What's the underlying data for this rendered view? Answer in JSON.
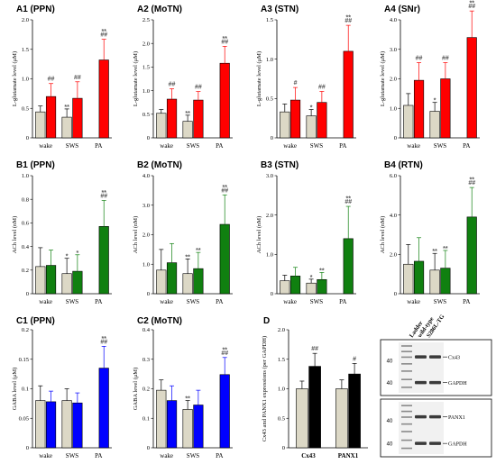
{
  "colors": {
    "control": "#dcd8c6",
    "red": "#ff0000",
    "green": "#108010",
    "blue": "#0000ff",
    "black": "#000000",
    "sig": "#555555"
  },
  "chart_data": [
    {
      "id": "A1",
      "type": "bar",
      "title": "A1 (PPN)",
      "ylabel": "L-glutamate level (μM)",
      "ylim": [
        0,
        2.0
      ],
      "yticks": [
        0,
        0.5,
        1.0,
        1.5,
        2.0
      ],
      "categories": [
        "wake",
        "SWS",
        "PA"
      ],
      "treatment_color": "red",
      "series": [
        {
          "values": [
            0.44,
            0.35,
            null
          ],
          "errors": [
            0.1,
            0.14,
            null
          ]
        },
        {
          "values": [
            0.7,
            0.67,
            1.32
          ],
          "errors": [
            0.22,
            0.28,
            0.35
          ]
        }
      ],
      "annotations": [
        {
          "cat": 0,
          "series": 1,
          "labels": [
            "##"
          ]
        },
        {
          "cat": 1,
          "series": 0,
          "labels": [
            "**"
          ]
        },
        {
          "cat": 1,
          "series": 1,
          "labels": [
            "##"
          ]
        },
        {
          "cat": 2,
          "series": 1,
          "labels": [
            "**",
            "##"
          ]
        }
      ]
    },
    {
      "id": "A2",
      "type": "bar",
      "title": "A2 (MoTN)",
      "ylabel": "L-glutamate level (μM)",
      "ylim": [
        0,
        2.5
      ],
      "yticks": [
        0,
        0.5,
        1.0,
        1.5,
        2.0,
        2.5
      ],
      "categories": [
        "wake",
        "SWS",
        "PA"
      ],
      "treatment_color": "red",
      "series": [
        {
          "values": [
            0.52,
            0.35,
            null
          ],
          "errors": [
            0.08,
            0.13,
            null
          ]
        },
        {
          "values": [
            0.82,
            0.8,
            1.58
          ],
          "errors": [
            0.22,
            0.18,
            0.36
          ]
        }
      ],
      "annotations": [
        {
          "cat": 0,
          "series": 1,
          "labels": [
            "##"
          ]
        },
        {
          "cat": 1,
          "series": 0,
          "labels": [
            "**"
          ]
        },
        {
          "cat": 1,
          "series": 1,
          "labels": [
            "##"
          ]
        },
        {
          "cat": 2,
          "series": 1,
          "labels": [
            "**",
            "##"
          ]
        }
      ]
    },
    {
      "id": "A3",
      "type": "bar",
      "title": "A3 (STN)",
      "ylabel": "L-glutamate level (μM)",
      "ylim": [
        0,
        1.5
      ],
      "yticks": [
        0,
        0.5,
        1.0,
        1.5
      ],
      "categories": [
        "wake",
        "SWS",
        "PA"
      ],
      "treatment_color": "red",
      "series": [
        {
          "values": [
            0.33,
            0.28,
            null
          ],
          "errors": [
            0.1,
            0.08,
            null
          ]
        },
        {
          "values": [
            0.48,
            0.45,
            1.1
          ],
          "errors": [
            0.16,
            0.14,
            0.33
          ]
        }
      ],
      "annotations": [
        {
          "cat": 0,
          "series": 1,
          "labels": [
            "#"
          ]
        },
        {
          "cat": 1,
          "series": 0,
          "labels": [
            "*"
          ]
        },
        {
          "cat": 1,
          "series": 1,
          "labels": [
            "##"
          ]
        },
        {
          "cat": 2,
          "series": 1,
          "labels": [
            "**",
            "##"
          ]
        }
      ]
    },
    {
      "id": "A4",
      "type": "bar",
      "title": "A4 (SNr)",
      "ylabel": "L-glutamate level (μM)",
      "ylim": [
        0,
        4.0
      ],
      "yticks": [
        0,
        1.0,
        2.0,
        3.0,
        4.0
      ],
      "categories": [
        "wake",
        "SWS",
        "PA"
      ],
      "treatment_color": "red",
      "series": [
        {
          "values": [
            1.1,
            0.9,
            null
          ],
          "errors": [
            0.4,
            0.3,
            null
          ]
        },
        {
          "values": [
            1.95,
            2.0,
            3.4
          ],
          "errors": [
            0.6,
            0.55,
            0.9
          ]
        }
      ],
      "annotations": [
        {
          "cat": 0,
          "series": 1,
          "labels": [
            "##"
          ]
        },
        {
          "cat": 1,
          "series": 0,
          "labels": [
            "*"
          ]
        },
        {
          "cat": 1,
          "series": 1,
          "labels": [
            "##"
          ]
        },
        {
          "cat": 2,
          "series": 1,
          "labels": [
            "**",
            "##"
          ]
        }
      ]
    },
    {
      "id": "B1",
      "type": "bar",
      "title": "B1 (PPN)",
      "ylabel": "ACh level (nM)",
      "ylim": [
        0,
        1.0
      ],
      "yticks": [
        0,
        0.2,
        0.4,
        0.6,
        0.8,
        1.0
      ],
      "categories": [
        "wake",
        "SWS",
        "PA"
      ],
      "treatment_color": "green",
      "series": [
        {
          "values": [
            0.23,
            0.17,
            null
          ],
          "errors": [
            0.16,
            0.13,
            null
          ]
        },
        {
          "values": [
            0.24,
            0.19,
            0.57
          ],
          "errors": [
            0.13,
            0.14,
            0.22
          ]
        }
      ],
      "annotations": [
        {
          "cat": 1,
          "series": 0,
          "labels": [
            "*"
          ]
        },
        {
          "cat": 1,
          "series": 1,
          "labels": [
            "*"
          ]
        },
        {
          "cat": 2,
          "series": 1,
          "labels": [
            "**",
            "##"
          ]
        }
      ]
    },
    {
      "id": "B2",
      "type": "bar",
      "title": "B2 (MoTN)",
      "ylabel": "ACh level (nM)",
      "ylim": [
        0,
        4.0
      ],
      "yticks": [
        0,
        1.0,
        2.0,
        3.0,
        4.0
      ],
      "categories": [
        "wake",
        "SWS",
        "PA"
      ],
      "treatment_color": "green",
      "series": [
        {
          "values": [
            0.8,
            0.68,
            null
          ],
          "errors": [
            0.7,
            0.5,
            null
          ]
        },
        {
          "values": [
            1.05,
            0.85,
            2.35
          ],
          "errors": [
            0.65,
            0.55,
            1.0
          ]
        }
      ],
      "annotations": [
        {
          "cat": 1,
          "series": 0,
          "labels": [
            "**"
          ]
        },
        {
          "cat": 1,
          "series": 1,
          "labels": [
            "**"
          ]
        },
        {
          "cat": 2,
          "series": 1,
          "labels": [
            "**",
            "##"
          ]
        }
      ]
    },
    {
      "id": "B3",
      "type": "bar",
      "title": "B3 (STN)",
      "ylabel": "ACh level (nM)",
      "ylim": [
        0,
        3.0
      ],
      "yticks": [
        0,
        1.0,
        2.0,
        3.0
      ],
      "categories": [
        "wake",
        "SWS",
        "PA"
      ],
      "treatment_color": "green",
      "series": [
        {
          "values": [
            0.33,
            0.27,
            null
          ],
          "errors": [
            0.14,
            0.1,
            null
          ]
        },
        {
          "values": [
            0.45,
            0.36,
            1.4
          ],
          "errors": [
            0.22,
            0.18,
            0.82
          ]
        }
      ],
      "annotations": [
        {
          "cat": 1,
          "series": 0,
          "labels": [
            "*"
          ]
        },
        {
          "cat": 1,
          "series": 1,
          "labels": [
            "**"
          ]
        },
        {
          "cat": 2,
          "series": 1,
          "labels": [
            "**",
            "##"
          ]
        }
      ]
    },
    {
      "id": "B4",
      "type": "bar",
      "title": "B4 (RTN)",
      "ylabel": "ACh level (nM)",
      "ylim": [
        0,
        6.0
      ],
      "yticks": [
        0,
        2.0,
        4.0,
        6.0
      ],
      "categories": [
        "wake",
        "SWS",
        "PA"
      ],
      "treatment_color": "green",
      "series": [
        {
          "values": [
            1.5,
            1.2,
            null
          ],
          "errors": [
            1.0,
            0.85,
            null
          ]
        },
        {
          "values": [
            1.65,
            1.3,
            3.9
          ],
          "errors": [
            1.2,
            0.9,
            1.5
          ]
        }
      ],
      "annotations": [
        {
          "cat": 1,
          "series": 0,
          "labels": [
            "**"
          ]
        },
        {
          "cat": 1,
          "series": 1,
          "labels": [
            "**"
          ]
        },
        {
          "cat": 2,
          "series": 1,
          "labels": [
            "**",
            "##"
          ]
        }
      ]
    },
    {
      "id": "C1",
      "type": "bar",
      "title": "C1 (PPN)",
      "ylabel": "GABA level (μM)",
      "ylim": [
        0,
        0.2
      ],
      "yticks": [
        0,
        0.05,
        0.1,
        0.15,
        0.2
      ],
      "categories": [
        "wake",
        "SWS",
        "PA"
      ],
      "treatment_color": "blue",
      "series": [
        {
          "values": [
            0.08,
            0.08,
            null
          ],
          "errors": [
            0.025,
            0.02,
            null
          ]
        },
        {
          "values": [
            0.078,
            0.076,
            0.135
          ],
          "errors": [
            0.018,
            0.017,
            0.037
          ]
        }
      ],
      "annotations": [
        {
          "cat": 2,
          "series": 1,
          "labels": [
            "**",
            "##"
          ]
        }
      ]
    },
    {
      "id": "C2",
      "type": "bar",
      "title": "C2 (MoTN)",
      "ylabel": "GABA level (μM)",
      "ylim": [
        0,
        0.4
      ],
      "yticks": [
        0,
        0.1,
        0.2,
        0.3,
        0.4
      ],
      "categories": [
        "wake",
        "SWS",
        "PA"
      ],
      "treatment_color": "blue",
      "series": [
        {
          "values": [
            0.195,
            0.13,
            null
          ],
          "errors": [
            0.035,
            0.03,
            null
          ]
        },
        {
          "values": [
            0.16,
            0.145,
            0.248
          ],
          "errors": [
            0.05,
            0.05,
            0.058
          ]
        }
      ],
      "annotations": [
        {
          "cat": 1,
          "series": 0,
          "labels": [
            "**"
          ]
        },
        {
          "cat": 2,
          "series": 1,
          "labels": [
            "**",
            "##"
          ]
        }
      ]
    },
    {
      "id": "D",
      "type": "bar",
      "title": "D",
      "ylabel": "Cx43 and PANX1 expressions (per GAPDH)",
      "ylim": [
        0,
        2.0
      ],
      "yticks": [
        0,
        0.5,
        1.0,
        1.5,
        2.0
      ],
      "categories": [
        "Cx43",
        "PANX1"
      ],
      "treatment_color": "black",
      "bold_categories": true,
      "series": [
        {
          "values": [
            1.0,
            1.0
          ],
          "errors": [
            0.13,
            0.15
          ]
        },
        {
          "values": [
            1.38,
            1.25
          ],
          "errors": [
            0.22,
            0.18
          ]
        }
      ],
      "annotations": [
        {
          "cat": 0,
          "series": 1,
          "labels": [
            "##"
          ]
        },
        {
          "cat": 1,
          "series": 1,
          "labels": [
            "#"
          ]
        }
      ]
    }
  ],
  "blot": {
    "lanes": [
      "Ladder",
      "wild-type",
      "S286L-TG"
    ],
    "upper": {
      "bands": [
        "Cx43",
        "GAPDH"
      ],
      "markers": [
        "40",
        "40"
      ]
    },
    "lower": {
      "bands": [
        "PANX1",
        "GAPDH"
      ],
      "markers": [
        "40",
        "40"
      ]
    }
  }
}
